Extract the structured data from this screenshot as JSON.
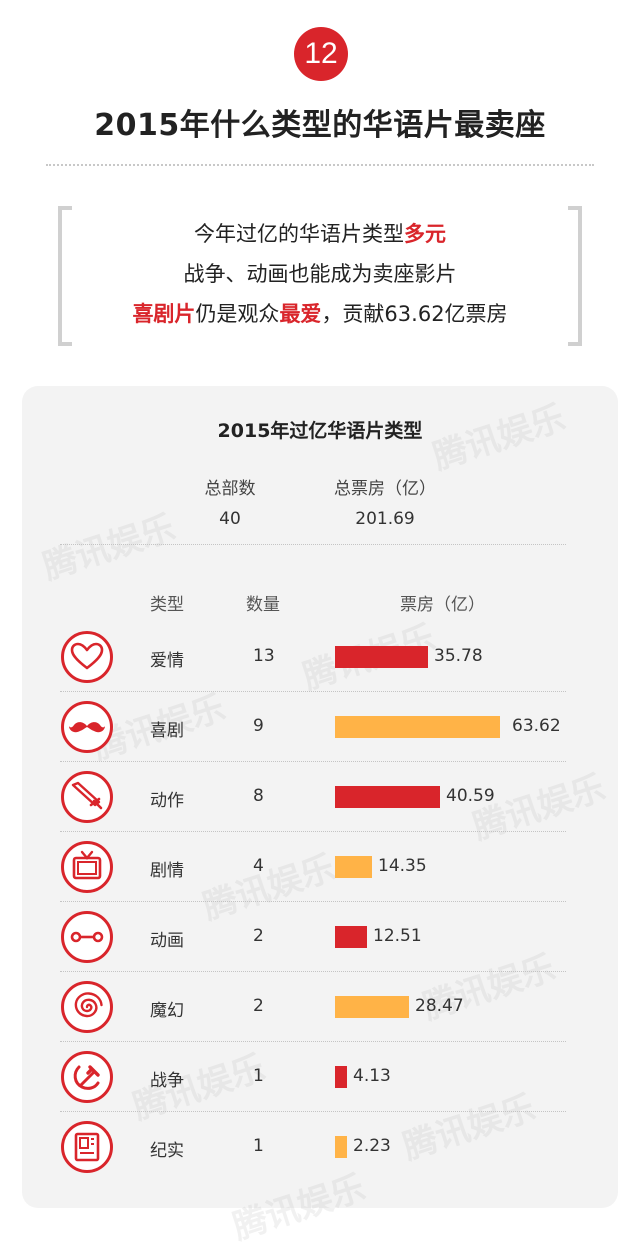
{
  "header": {
    "badge_number": "12",
    "title": "2015年什么类型的华语片最卖座"
  },
  "intro": {
    "line1_plain": "今年过亿的华语片类型",
    "line1_red": "多元",
    "line2": "战争、动画也能成为卖座影片",
    "line3_red1": "喜剧片",
    "line3_plain1": "仍是观众",
    "line3_red2": "最爱",
    "line3_plain2": "，贡献63.62亿票房"
  },
  "summary": {
    "count_label": "总部数",
    "count_value": "40",
    "box_label": "总票房（亿）",
    "box_value": "201.69"
  },
  "watermark": "腾讯娱乐",
  "colors": {
    "red": "#d9252b",
    "orange": "#ffb347"
  },
  "chart_data": {
    "type": "bar",
    "title": "2015年过亿华语片类型",
    "columns": [
      "类型",
      "数量",
      "票房（亿）"
    ],
    "categories": [
      "爱情",
      "喜剧",
      "动作",
      "剧情",
      "动画",
      "魔幻",
      "战争",
      "纪实"
    ],
    "counts": [
      13,
      9,
      8,
      4,
      2,
      2,
      1,
      1
    ],
    "values": [
      35.78,
      63.62,
      40.59,
      14.35,
      12.51,
      28.47,
      4.13,
      2.23
    ],
    "value_labels": [
      "35.78",
      "63.62",
      "40.59",
      "14.35",
      "12.51",
      "28.47",
      "4.13",
      "2.23"
    ],
    "icons": [
      "heart-icon",
      "mustache-icon",
      "knife-icon",
      "tv-icon",
      "film-reel-icon",
      "swirl-icon",
      "hammer-sickle-icon",
      "document-icon"
    ],
    "bar_colors": [
      "#d9252b",
      "#ffb347",
      "#d9252b",
      "#ffb347",
      "#d9252b",
      "#ffb347",
      "#d9252b",
      "#ffb347"
    ],
    "orientation": "horizontal",
    "xlim": [
      0,
      63.62
    ]
  }
}
